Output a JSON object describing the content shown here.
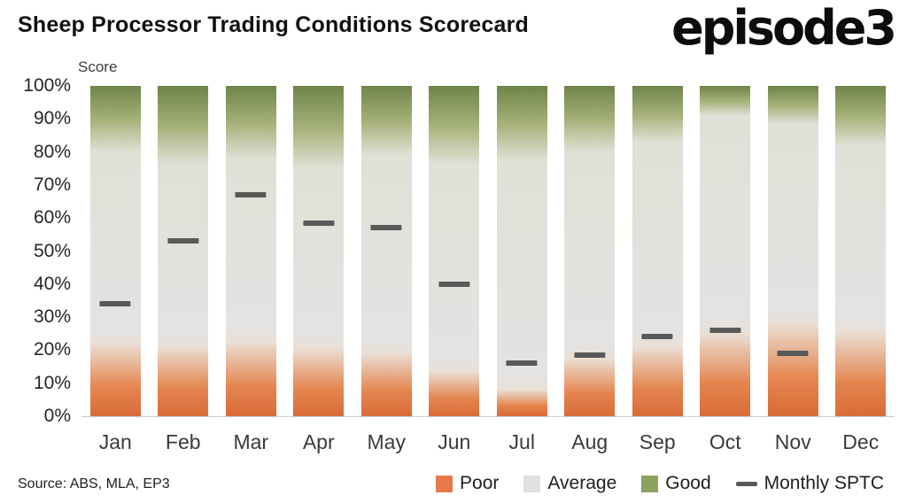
{
  "title": "Sheep Processor Trading Conditions Scorecard",
  "logo": {
    "text": "episode3"
  },
  "axis": {
    "score_label": "Score",
    "y_ticks": [
      "100%",
      "90%",
      "80%",
      "70%",
      "60%",
      "50%",
      "40%",
      "30%",
      "20%",
      "10%",
      "0%"
    ]
  },
  "source": "Source: ABS, MLA, EP3",
  "colors": {
    "poor_deep": "#d96b39",
    "poor_mid": "#e5854f",
    "poor_fade": "#eadfd5",
    "average": "#e3e3e3",
    "good_fade": "#dfe1d6",
    "good_mid": "#a4b077",
    "good_deep": "#6f8449",
    "marker": "#595959",
    "legend_poor": "#e8794d",
    "legend_average": "#e0e0e0",
    "legend_good": "#8ca25f"
  },
  "legend": [
    {
      "label": "Poor",
      "swatch": "square",
      "color": "#e8794d"
    },
    {
      "label": "Average",
      "swatch": "square",
      "color": "#e0e0e0"
    },
    {
      "label": "Good",
      "swatch": "square",
      "color": "#8ca25f"
    },
    {
      "label": "Monthly SPTC",
      "swatch": "dash",
      "color": "#595959"
    }
  ],
  "chart_data": {
    "type": "bar",
    "subtype": "stacked-100-with-markers",
    "title": "Sheep Processor Trading Conditions Scorecard",
    "xlabel": "",
    "ylabel": "Score",
    "ylim": [
      0,
      100
    ],
    "grid": false,
    "legend_position": "bottom",
    "categories": [
      "Jan",
      "Feb",
      "Mar",
      "Apr",
      "May",
      "Jun",
      "Jul",
      "Aug",
      "Sep",
      "Oct",
      "Nov",
      "Dec"
    ],
    "series": [
      {
        "name": "Poor",
        "role": "stack-segment",
        "values": [
          22,
          21,
          22.5,
          20.5,
          19,
          13.5,
          8,
          17.5,
          21,
          25,
          28,
          25.5
        ]
      },
      {
        "name": "Average",
        "role": "stack-segment",
        "values": [
          58,
          55,
          55.5,
          54.5,
          60,
          63,
          69.5,
          62.5,
          62,
          66,
          60.5,
          56.5
        ]
      },
      {
        "name": "Good",
        "role": "stack-segment",
        "values": [
          20,
          24,
          22,
          25,
          21,
          23.5,
          22.5,
          20,
          17,
          9,
          11.5,
          18
        ]
      },
      {
        "name": "Monthly SPTC",
        "role": "marker",
        "values": [
          34,
          53,
          67,
          58.5,
          57,
          40,
          16,
          18.5,
          24,
          26,
          19,
          null
        ]
      }
    ]
  }
}
